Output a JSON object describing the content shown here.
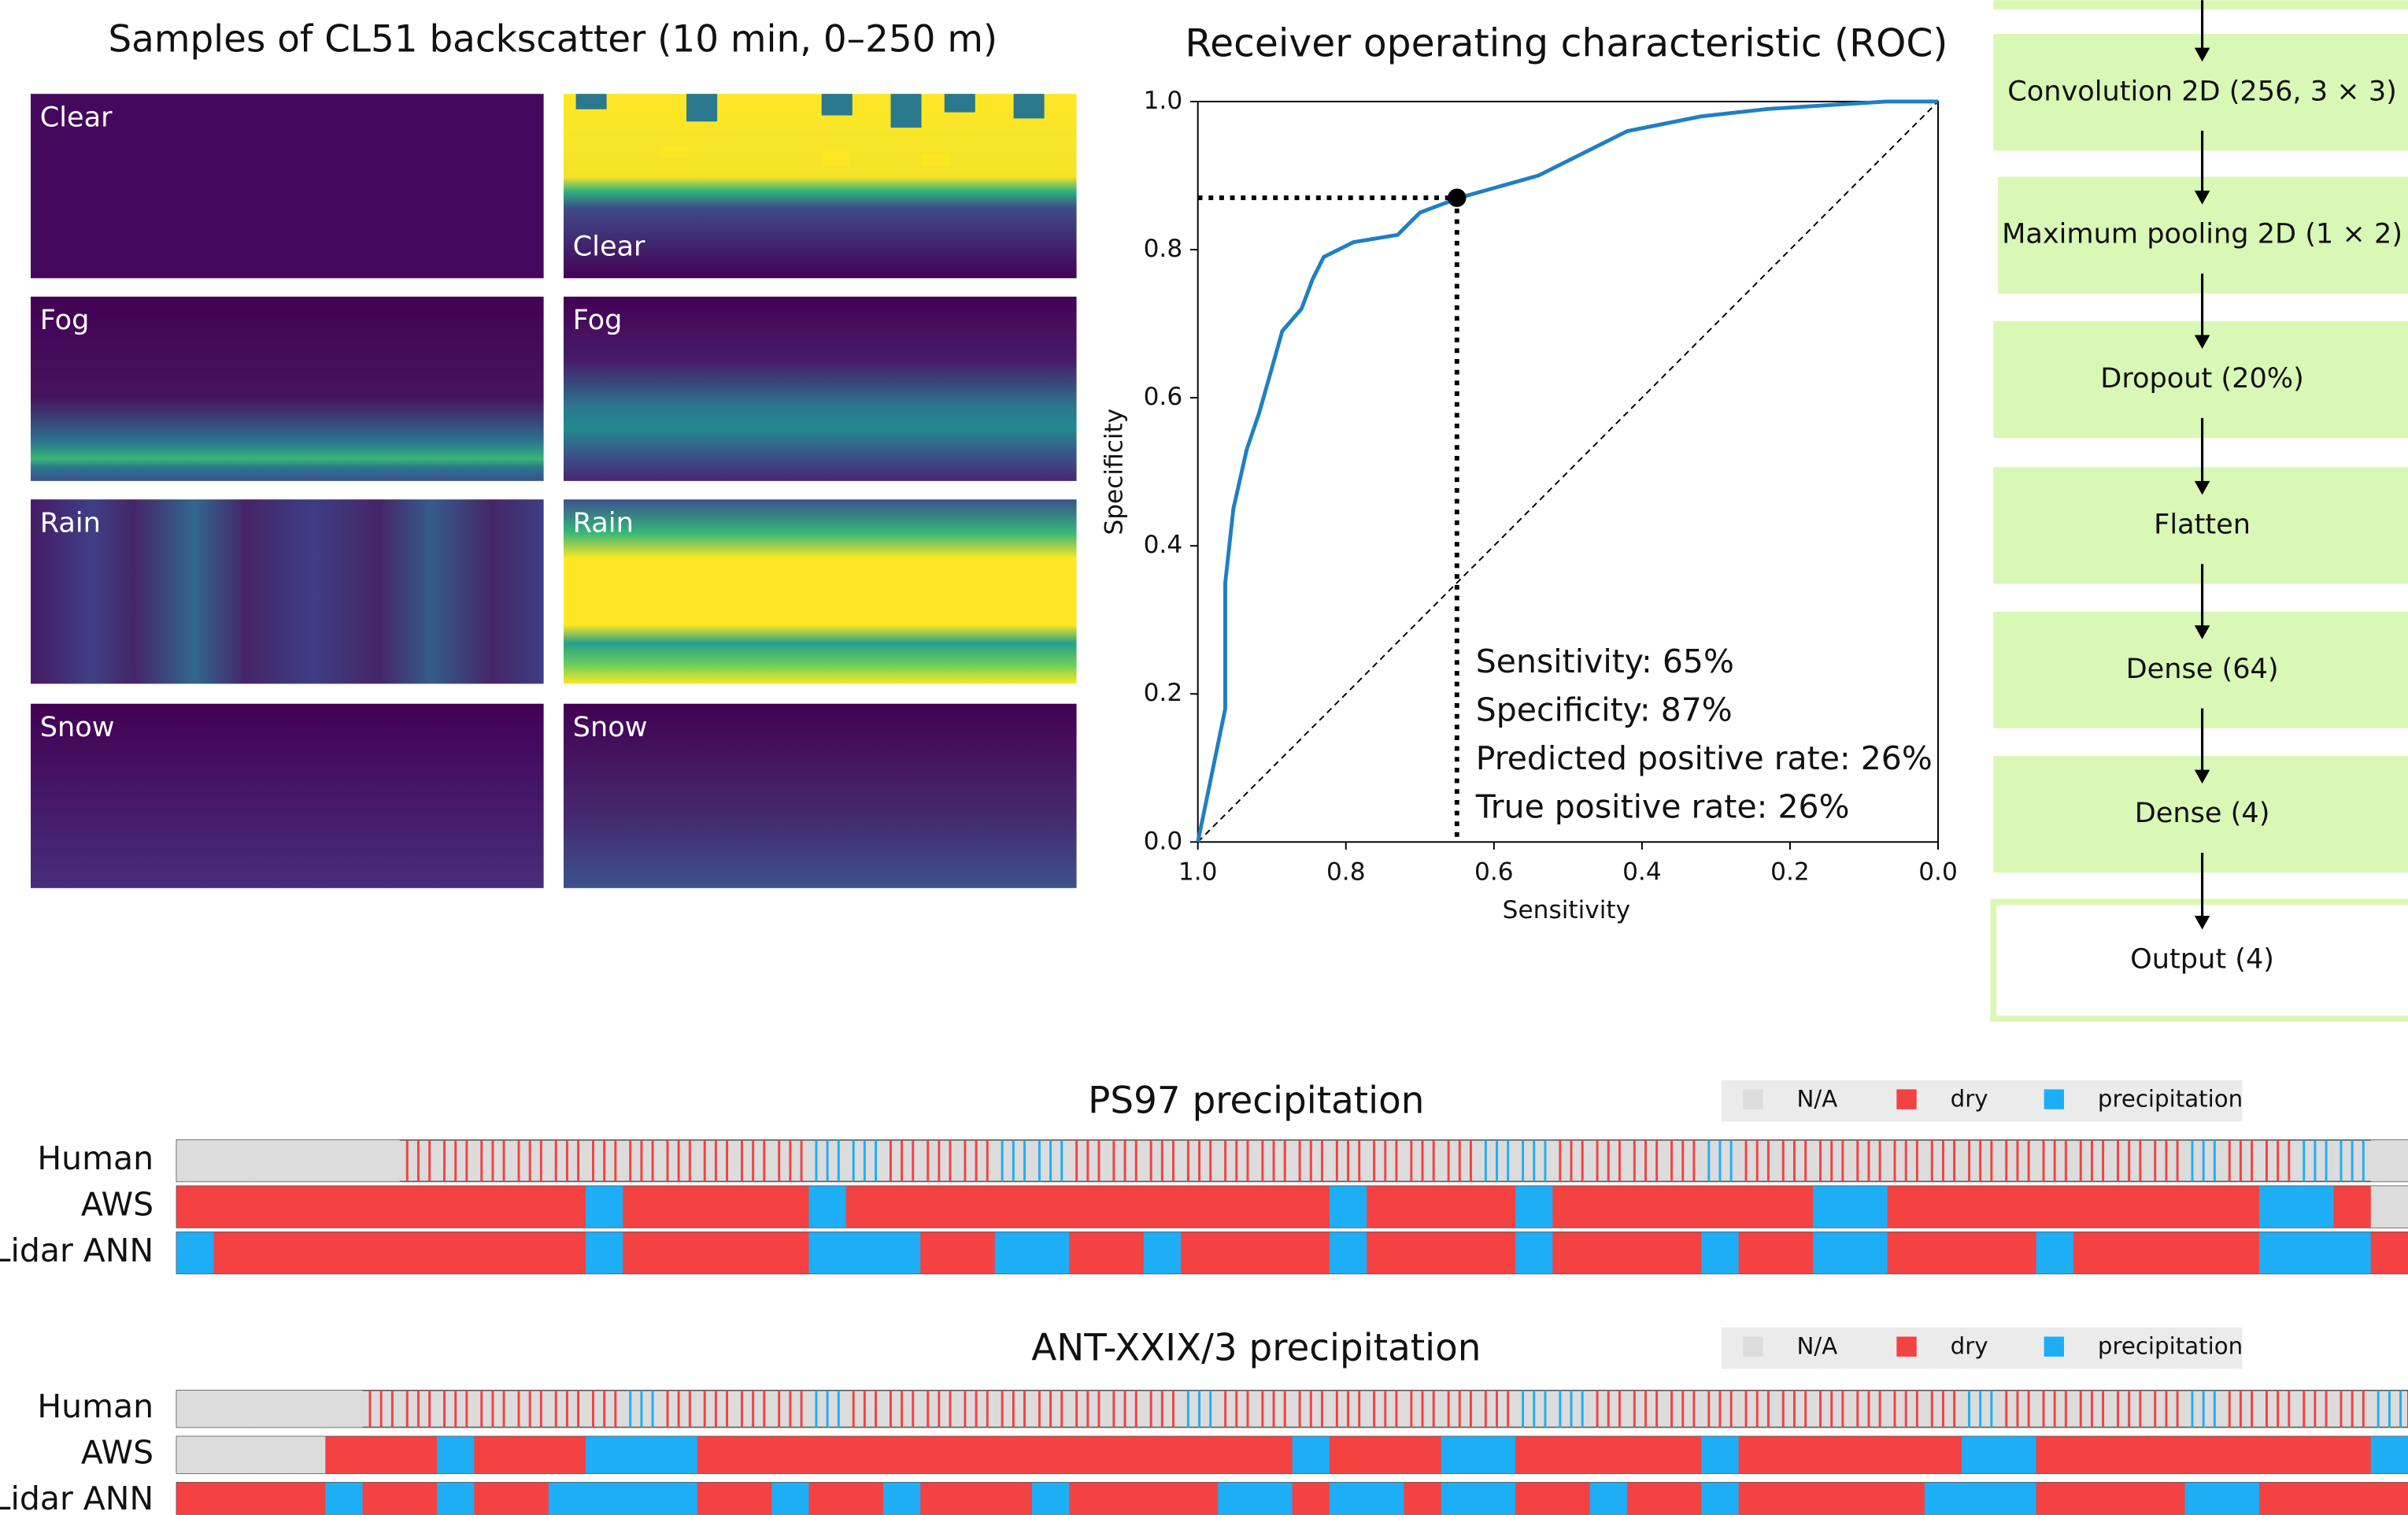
{
  "samples": {
    "title": "Samples of CL51 backscatter (10 min, 0–250 m)",
    "panels": [
      [
        "Clear",
        "Clear"
      ],
      [
        "Fog",
        "Fog"
      ],
      [
        "Rain",
        "Rain"
      ],
      [
        "Snow",
        "Snow"
      ]
    ]
  },
  "chart_data": [
    {
      "type": "line",
      "title": "Receiver operating characteristic (ROC)",
      "x_label": "Sensitivity",
      "y_label": "Specificity",
      "xlim": [
        1,
        0
      ],
      "ylim": [
        0,
        1
      ],
      "xticks": [
        {
          "value": 1,
          "label": "1.0"
        },
        0.8,
        0.6,
        0.4,
        0.2,
        {
          "value": 0,
          "label": "0.0"
        }
      ],
      "yticks": [
        {
          "value": 0,
          "label": "0.0"
        },
        0.2,
        0.4,
        0.6,
        0.8,
        {
          "value": 1,
          "label": "1.0"
        }
      ],
      "x": [
        1.0,
        0.963,
        0.963,
        0.952,
        0.934,
        0.917,
        0.9,
        0.886,
        0.86,
        0.845,
        0.83,
        0.79,
        0.73,
        0.7,
        0.647,
        0.54,
        0.48,
        0.42,
        0.32,
        0.23,
        0.07,
        0.0
      ],
      "series": [
        {
          "color": "#1f7fc4",
          "values": [
            0.0,
            0.18,
            0.35,
            0.45,
            0.53,
            0.58,
            0.64,
            0.69,
            0.72,
            0.76,
            0.79,
            0.81,
            0.82,
            0.85,
            0.87,
            0.9,
            0.93,
            0.96,
            0.98,
            0.99,
            1.0,
            1.0
          ]
        }
      ],
      "point": {
        "x": 0.65,
        "y": 0.87
      },
      "annotations": [
        "Sensitivity: 65%",
        "Specificity: 87%",
        "Predicted positive rate: 26%",
        "True positive rate: 26%"
      ]
    },
    {
      "type": "timeline",
      "title": "PS97 precipitation",
      "states": [
        {
          "name": "N/A",
          "color": "#dcdcdc"
        },
        {
          "name": "dry",
          "color": "#f44141"
        },
        {
          "name": "precipitation",
          "color": "#1eaef5"
        }
      ],
      "rows": [
        {
          "name": "Human",
          "thin": true,
          "values": [
            0,
            0,
            0,
            0,
            0,
            0,
            1,
            1,
            1,
            1,
            1,
            1,
            1,
            1,
            1,
            1,
            1,
            2,
            2,
            1,
            1,
            1,
            2,
            2,
            1,
            1,
            1,
            1,
            1,
            1,
            1,
            1,
            1,
            1,
            1,
            2,
            2,
            1,
            1,
            1,
            1,
            2,
            1,
            1,
            1,
            1,
            1,
            1,
            1,
            1,
            1,
            1,
            1,
            1,
            2,
            1,
            1,
            2,
            2,
            0
          ]
        },
        {
          "name": "AWS",
          "values": [
            1,
            1,
            1,
            1,
            1,
            1,
            1,
            1,
            1,
            1,
            1,
            2,
            1,
            1,
            1,
            1,
            1,
            2,
            1,
            1,
            1,
            1,
            1,
            1,
            1,
            1,
            1,
            1,
            1,
            1,
            1,
            2,
            1,
            1,
            1,
            1,
            2,
            1,
            1,
            1,
            1,
            1,
            1,
            1,
            2,
            2,
            1,
            1,
            1,
            1,
            1,
            1,
            1,
            1,
            1,
            1,
            2,
            2,
            1,
            0
          ]
        },
        {
          "name": "Lidar ANN",
          "values": [
            2,
            1,
            1,
            1,
            1,
            1,
            1,
            1,
            1,
            1,
            1,
            2,
            1,
            1,
            1,
            1,
            1,
            2,
            2,
            2,
            1,
            1,
            2,
            2,
            1,
            1,
            2,
            1,
            1,
            1,
            1,
            2,
            1,
            1,
            1,
            1,
            2,
            1,
            1,
            1,
            1,
            2,
            1,
            1,
            2,
            2,
            1,
            1,
            1,
            1,
            2,
            1,
            1,
            1,
            1,
            1,
            2,
            2,
            2,
            1
          ]
        }
      ]
    },
    {
      "type": "timeline",
      "title": "ANT-XXIX/3 precipitation",
      "states": [
        {
          "name": "N/A",
          "color": "#dcdcdc"
        },
        {
          "name": "dry",
          "color": "#f44141"
        },
        {
          "name": "precipitation",
          "color": "#1eaef5"
        }
      ],
      "rows": [
        {
          "name": "Human",
          "thin": true,
          "values": [
            0,
            0,
            0,
            0,
            0,
            1,
            1,
            1,
            1,
            1,
            1,
            1,
            2,
            1,
            1,
            1,
            1,
            2,
            1,
            1,
            1,
            1,
            1,
            1,
            1,
            1,
            1,
            2,
            1,
            1,
            1,
            1,
            1,
            1,
            1,
            1,
            2,
            2,
            1,
            1,
            1,
            1,
            1,
            1,
            1,
            1,
            1,
            1,
            2,
            1,
            1,
            1,
            1,
            1,
            2,
            1,
            1,
            1,
            1,
            2
          ]
        },
        {
          "name": "AWS",
          "values": [
            0,
            0,
            0,
            0,
            1,
            1,
            1,
            2,
            1,
            1,
            1,
            2,
            2,
            2,
            1,
            1,
            1,
            1,
            1,
            1,
            1,
            1,
            1,
            1,
            1,
            1,
            1,
            1,
            1,
            1,
            2,
            1,
            1,
            1,
            2,
            2,
            1,
            1,
            1,
            1,
            1,
            2,
            1,
            1,
            1,
            1,
            1,
            1,
            2,
            2,
            1,
            1,
            1,
            1,
            1,
            1,
            1,
            1,
            1,
            2
          ]
        },
        {
          "name": "Lidar ANN",
          "values": [
            1,
            1,
            1,
            1,
            2,
            1,
            1,
            2,
            1,
            1,
            2,
            2,
            2,
            2,
            1,
            1,
            2,
            1,
            1,
            2,
            1,
            1,
            1,
            2,
            1,
            1,
            1,
            1,
            2,
            2,
            1,
            2,
            2,
            1,
            2,
            2,
            1,
            1,
            2,
            1,
            1,
            2,
            1,
            1,
            1,
            1,
            1,
            2,
            2,
            2,
            1,
            1,
            1,
            1,
            2,
            2,
            1,
            1,
            1,
            1
          ]
        }
      ]
    }
  ],
  "diagram": {
    "nodes": [
      "Convolution 2D (256, 3 × 3)",
      "Maximum pooling 2D (1 × 2)",
      "Dropout (20%)",
      "Flatten",
      "Dense (64)",
      "Dense (4)",
      "Output (4)"
    ]
  }
}
